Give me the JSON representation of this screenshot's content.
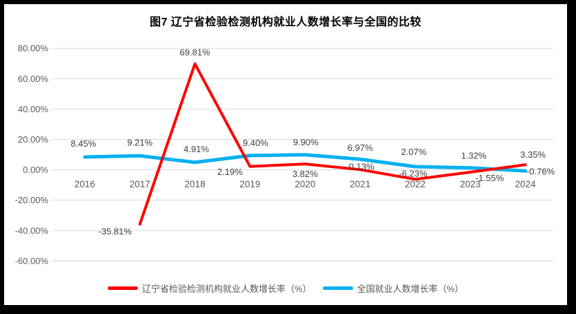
{
  "chart_data": {
    "type": "line",
    "title": "图7  辽宁省检验检测机构就业人数增长率与全国的比较",
    "categories": [
      "2016",
      "2017",
      "2018",
      "2019",
      "2020",
      "2021",
      "2022",
      "2023",
      "2024"
    ],
    "series": [
      {
        "name": "辽宁省检验检测机构就业人数增长率（%）",
        "color": "#ff0000",
        "values": [
          null,
          -35.81,
          69.81,
          2.19,
          3.82,
          0.13,
          -6.23,
          -1.55,
          3.35
        ],
        "point_labels": [
          null,
          "-35.81%",
          "69.81%",
          "2.19%",
          "3.82%",
          "0.13%",
          "-6.23%",
          "-1.55%",
          "3.35%"
        ]
      },
      {
        "name": "全国就业人数增长率（%）",
        "color": "#00b0f0",
        "values": [
          8.45,
          9.21,
          4.91,
          9.4,
          9.9,
          6.97,
          2.07,
          1.32,
          -0.76
        ],
        "point_labels": [
          "8.45%",
          "9.21%",
          "4.91%",
          "9.40%",
          "9.90%",
          "6.97%",
          "2.07%",
          "1.32%",
          "-0.76%"
        ]
      }
    ],
    "y_axis": {
      "min": -60,
      "max": 80,
      "step": 20,
      "tick_labels": [
        "80.00%",
        "60.00%",
        "40.00%",
        "20.00%",
        "0.00%",
        "-20.00%",
        "-40.00%",
        "-60.00%"
      ]
    },
    "x_axis": {
      "tick_labels": [
        "2016",
        "2017",
        "2018",
        "2019",
        "2020",
        "2021",
        "2022",
        "2023",
        "2024"
      ]
    },
    "grid": true,
    "legend_position": "bottom",
    "colors": {
      "grid": "#d9d9d9",
      "axis_text": "#595959",
      "data_label_text": "#404040",
      "series_red": "#ff0000",
      "series_blue": "#00b0f0",
      "frame": "#000000",
      "background": "#ffffff"
    }
  }
}
